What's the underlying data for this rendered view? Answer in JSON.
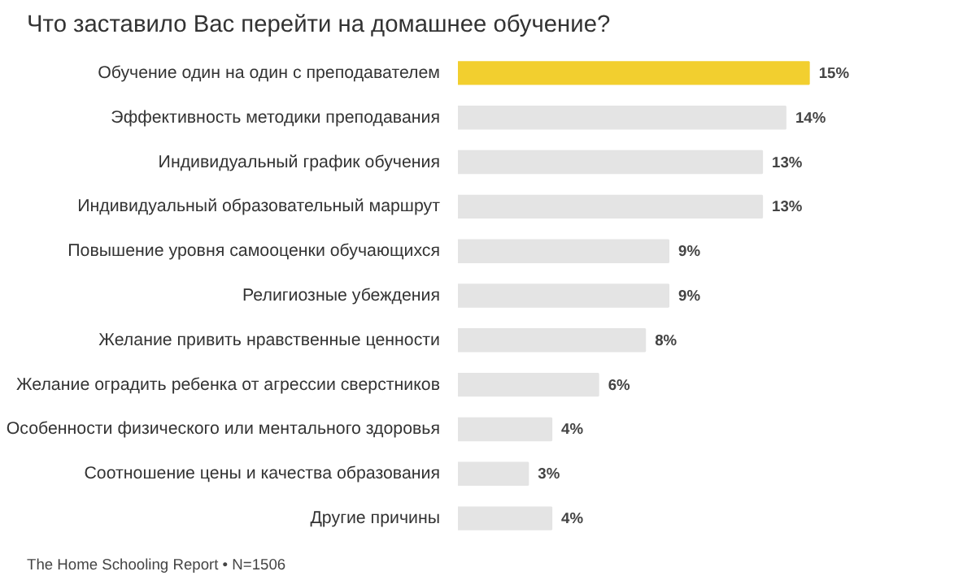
{
  "chart_data": {
    "type": "bar",
    "orientation": "horizontal",
    "title": "Что заставило Вас перейти на домашнее обучение?",
    "categories": [
      "Обучение один на один с преподавателем",
      "Эффективность методики преподавания",
      "Индивидуальный график обучения",
      "Индивидуальный образовательный маршрут",
      "Повышение уровня самооценки обучающихся",
      "Религиозные убеждения",
      "Желание привить нравственные ценности",
      "Желание оградить ребенка от агрессии сверстников",
      "Особенности физического или ментального здоровья",
      "Соотношение цены и качества образования",
      "Другие причины"
    ],
    "values": [
      15,
      14,
      13,
      13,
      9,
      9,
      8,
      6,
      4,
      3,
      4
    ],
    "value_labels": [
      "15%",
      "14%",
      "13%",
      "13%",
      "9%",
      "9%",
      "8%",
      "6%",
      "4%",
      "3%",
      "4%"
    ],
    "colors": [
      "#f2cf2f",
      "#e4e4e4",
      "#e4e4e4",
      "#e4e4e4",
      "#e4e4e4",
      "#e4e4e4",
      "#e4e4e4",
      "#e4e4e4",
      "#e4e4e4",
      "#e4e4e4",
      "#e4e4e4"
    ],
    "annotations": [
      "The Home Schooling Report • N=1506"
    ]
  }
}
